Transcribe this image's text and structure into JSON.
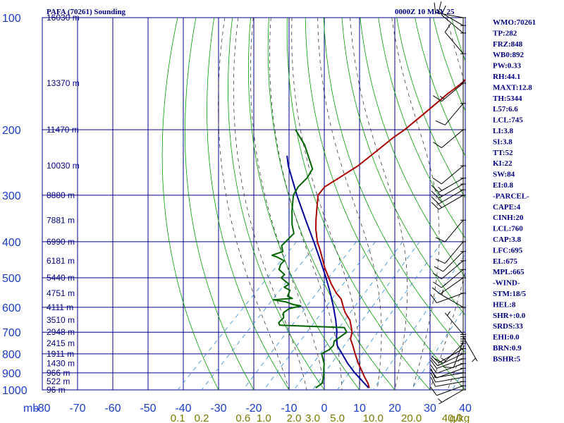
{
  "header": {
    "station": "PAFA (70261) Sounding",
    "datetime": "0000Z 10 MAY 25"
  },
  "colors": {
    "grid": "#00008b",
    "dry_adiabat": "#00a000",
    "moist_adiabat": "#3a3a3a",
    "mixing_ratio": "#2a8ad0",
    "temperature": "#aa0000",
    "dewpoint": "#006400",
    "parcel": "#000099",
    "wind_barb": "#000000"
  },
  "chart_data": {
    "type": "line",
    "projection": "skew-t log-p",
    "x_unit_label": "mb",
    "pressure_ticks": [
      100,
      200,
      300,
      400,
      500,
      600,
      700,
      800,
      900,
      1000
    ],
    "temperature_ticks": [
      -80,
      -70,
      -60,
      -50,
      -40,
      -30,
      -20,
      -10,
      0,
      10,
      20,
      30,
      40
    ],
    "mixing_ratio_ticks": [
      "0.1",
      "0.2",
      "0.6",
      "1.0",
      "2.0",
      "3.0",
      "5.0",
      "10.0",
      "20.0",
      "40.0"
    ],
    "mixing_ratio_unit": "g/kg",
    "mixing_ratio_values": [
      0.1,
      0.2,
      0.6,
      1.0,
      2.0,
      3.0,
      5.0,
      10.0,
      20.0,
      40.0
    ],
    "height_labels": [
      {
        "p": 100,
        "label": "16030 m"
      },
      {
        "p": 150,
        "label": "13370 m"
      },
      {
        "p": 200,
        "label": "11470 m"
      },
      {
        "p": 250,
        "label": "10030 m"
      },
      {
        "p": 300,
        "label": "8880 m"
      },
      {
        "p": 350,
        "label": "7881 m"
      },
      {
        "p": 400,
        "label": "6990 m"
      },
      {
        "p": 450,
        "label": "6181 m"
      },
      {
        "p": 500,
        "label": "5440 m"
      },
      {
        "p": 550,
        "label": "4751 m"
      },
      {
        "p": 600,
        "label": "4111 m"
      },
      {
        "p": 650,
        "label": "3510 m"
      },
      {
        "p": 700,
        "label": "2948 m"
      },
      {
        "p": 750,
        "label": "2415 m"
      },
      {
        "p": 800,
        "label": "1911 m"
      },
      {
        "p": 850,
        "label": "1430 m"
      },
      {
        "p": 900,
        "label": "966 m"
      },
      {
        "p": 950,
        "label": "522 m"
      },
      {
        "p": 1000,
        "label": "96 m"
      }
    ],
    "series": [
      {
        "kind": "temperature",
        "points": [
          [
            988,
            12.2
          ],
          [
            960,
            10.5
          ],
          [
            920,
            7.5
          ],
          [
            880,
            4.6
          ],
          [
            850,
            2.2
          ],
          [
            800,
            -1.5
          ],
          [
            760,
            -4.5
          ],
          [
            730,
            -7.0
          ],
          [
            700,
            -8.5
          ],
          [
            680,
            -10.0
          ],
          [
            650,
            -12.5
          ],
          [
            620,
            -16.0
          ],
          [
            600,
            -18.0
          ],
          [
            570,
            -21.0
          ],
          [
            550,
            -24.0
          ],
          [
            520,
            -28.0
          ],
          [
            500,
            -30.5
          ],
          [
            470,
            -34.5
          ],
          [
            450,
            -37.0
          ],
          [
            420,
            -41.0
          ],
          [
            400,
            -44.0
          ],
          [
            370,
            -48.0
          ],
          [
            350,
            -50.5
          ],
          [
            330,
            -53.0
          ],
          [
            300,
            -57.0
          ],
          [
            285,
            -57.5
          ],
          [
            270,
            -56.0
          ],
          [
            250,
            -54.0
          ],
          [
            230,
            -53.0
          ],
          [
            210,
            -52.0
          ],
          [
            200,
            -51.0
          ],
          [
            180,
            -50.0
          ],
          [
            160,
            -49.0
          ],
          [
            150,
            -48.0
          ],
          [
            130,
            -48.0
          ],
          [
            120,
            -48.0
          ],
          [
            110,
            -49.0
          ],
          [
            100,
            -50.0
          ]
        ]
      },
      {
        "kind": "dewpoint",
        "points": [
          [
            988,
            -3.0
          ],
          [
            960,
            -2.5
          ],
          [
            920,
            -4.0
          ],
          [
            880,
            -6.0
          ],
          [
            850,
            -7.5
          ],
          [
            800,
            -11.0
          ],
          [
            780,
            -10.0
          ],
          [
            760,
            -10.0
          ],
          [
            740,
            -11.0
          ],
          [
            720,
            -10.5
          ],
          [
            700,
            -10.0
          ],
          [
            680,
            -12.0
          ],
          [
            675,
            -22.0
          ],
          [
            670,
            -31.0
          ],
          [
            660,
            -32.0
          ],
          [
            640,
            -32.0
          ],
          [
            620,
            -33.5
          ],
          [
            605,
            -33.0
          ],
          [
            595,
            -30.5
          ],
          [
            590,
            -33.0
          ],
          [
            580,
            -36.0
          ],
          [
            573,
            -40.0
          ],
          [
            568,
            -35.0
          ],
          [
            560,
            -37.0
          ],
          [
            550,
            -37.5
          ],
          [
            540,
            -38.0
          ],
          [
            530,
            -40.5
          ],
          [
            520,
            -40.0
          ],
          [
            510,
            -42.0
          ],
          [
            500,
            -44.0
          ],
          [
            490,
            -44.0
          ],
          [
            475,
            -47.0
          ],
          [
            460,
            -48.0
          ],
          [
            450,
            -48.0
          ],
          [
            440,
            -51.0
          ],
          [
            435,
            -53.0
          ],
          [
            425,
            -51.0
          ],
          [
            410,
            -53.0
          ],
          [
            400,
            -53.0
          ],
          [
            380,
            -53.0
          ],
          [
            360,
            -56.0
          ],
          [
            330,
            -60.0
          ],
          [
            300,
            -64.0
          ],
          [
            285,
            -65.0
          ],
          [
            270,
            -65.0
          ],
          [
            255,
            -66.0
          ],
          [
            235,
            -71.0
          ],
          [
            220,
            -75.0
          ],
          [
            200,
            -82.0
          ]
        ]
      },
      {
        "kind": "parcel",
        "points": [
          [
            988,
            12.0
          ],
          [
            900,
            3.8
          ],
          [
            850,
            -0.8
          ],
          [
            800,
            -5.2
          ],
          [
            760,
            -8.9
          ],
          [
            720,
            -11.6
          ],
          [
            700,
            -12.8
          ],
          [
            650,
            -16.5
          ],
          [
            600,
            -20.8
          ],
          [
            550,
            -25.7
          ],
          [
            500,
            -31.3
          ],
          [
            450,
            -37.7
          ],
          [
            400,
            -45.0
          ],
          [
            350,
            -53.4
          ],
          [
            300,
            -63.0
          ],
          [
            250,
            -73.8
          ],
          [
            235,
            -77.0
          ]
        ]
      }
    ],
    "skew_t": {
      "p_top": 100,
      "p_bottom": 1000,
      "t_left": -80,
      "t_right": 40,
      "skew_degrees_per_log_decade_ratio": 1.0
    }
  },
  "wind_barbs": [
    {
      "p": 1000,
      "dir": 240,
      "kt": 5
    },
    {
      "p": 975,
      "dir": 250,
      "kt": 10
    },
    {
      "p": 950,
      "dir": 260,
      "kt": 10
    },
    {
      "p": 925,
      "dir": 260,
      "kt": 10
    },
    {
      "p": 900,
      "dir": 260,
      "kt": 10
    },
    {
      "p": 875,
      "dir": 250,
      "kt": 10
    },
    {
      "p": 850,
      "dir": 250,
      "kt": 10
    },
    {
      "p": 825,
      "dir": 250,
      "kt": 10
    },
    {
      "p": 800,
      "dir": 245,
      "kt": 10
    },
    {
      "p": 775,
      "dir": 240,
      "kt": 10
    },
    {
      "p": 750,
      "dir": 225,
      "kt": 15
    },
    {
      "p": 740,
      "dir": 200,
      "kt": 10
    },
    {
      "p": 730,
      "dir": 180,
      "kt": 5
    },
    {
      "p": 720,
      "dir": 150,
      "kt": 5
    },
    {
      "p": 710,
      "dir": 320,
      "kt": 5
    },
    {
      "p": 600,
      "dir": 300,
      "kt": 5
    },
    {
      "p": 550,
      "dir": 250,
      "kt": 10
    },
    {
      "p": 500,
      "dir": 235,
      "kt": 10
    },
    {
      "p": 475,
      "dir": 230,
      "kt": 10
    },
    {
      "p": 450,
      "dir": 230,
      "kt": 10
    },
    {
      "p": 425,
      "dir": 225,
      "kt": 10
    },
    {
      "p": 400,
      "dir": 220,
      "kt": 10
    },
    {
      "p": 350,
      "dir": 220,
      "kt": 10
    },
    {
      "p": 300,
      "dir": 240,
      "kt": 15
    },
    {
      "p": 290,
      "dir": 240,
      "kt": 15
    },
    {
      "p": 280,
      "dir": 240,
      "kt": 15
    },
    {
      "p": 270,
      "dir": 240,
      "kt": 15
    },
    {
      "p": 250,
      "dir": 230,
      "kt": 10
    },
    {
      "p": 200,
      "dir": 230,
      "kt": 10
    },
    {
      "p": 170,
      "dir": 220,
      "kt": 10
    },
    {
      "p": 150,
      "dir": 230,
      "kt": 15
    },
    {
      "p": 125,
      "dir": 320,
      "kt": 10
    },
    {
      "p": 110,
      "dir": 310,
      "kt": 10
    },
    {
      "p": 105,
      "dir": 300,
      "kt": 10
    },
    {
      "p": 100,
      "dir": 280,
      "kt": 10
    }
  ],
  "indices": [
    "WMO:70261",
    "TP:282",
    "FRZ:848",
    "WB0:892",
    "PW:0.33",
    "RH:44.1",
    "MAXT:12.8",
    "TH:5344",
    "L57:6.6",
    "LCL:745",
    "LI:3.8",
    "SI:3.8",
    "TT:52",
    "KI:22",
    "SW:84",
    "EI:0.8",
    "-PARCEL-",
    "CAPE:4",
    "CINH:20",
    "LCL:760",
    "CAP:3.8",
    "LFC:695",
    "EL:675",
    "MPL:665",
    "-WIND-",
    "STM:18/5",
    "HEL:8",
    "SHR+:0.0",
    "SRDS:33",
    "EHI:0.0",
    "BRN:0.9",
    "BSHR:5"
  ]
}
